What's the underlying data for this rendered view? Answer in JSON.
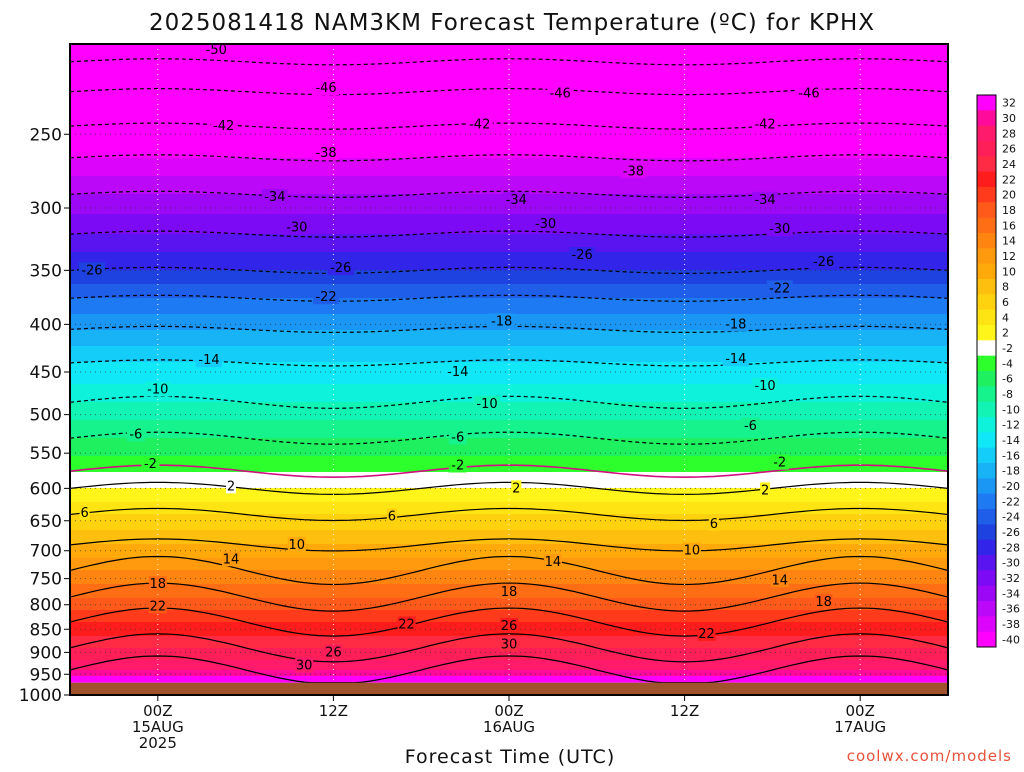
{
  "title": "2025081418 NAM3KM Forecast Temperature (ºC) for KPHX",
  "credit": "coolwx.com/models",
  "chart_data": {
    "type": "heatmap",
    "title": "2025081418 NAM3KM Forecast Temperature (ºC) for KPHX",
    "xlabel": "Forecast Time (UTC)",
    "ylabel": "",
    "y_axis_scale": "log-pressure (hPa), inverted",
    "ylim": [
      1000,
      200
    ],
    "x_hours_range": [
      0,
      60
    ],
    "x_ticks": [
      {
        "hour": 6,
        "lines": [
          "00Z",
          "15AUG",
          "2025"
        ]
      },
      {
        "hour": 18,
        "lines": [
          "12Z"
        ]
      },
      {
        "hour": 30,
        "lines": [
          "00Z",
          "16AUG"
        ]
      },
      {
        "hour": 42,
        "lines": [
          "12Z"
        ]
      },
      {
        "hour": 54,
        "lines": [
          "00Z",
          "17AUG"
        ]
      }
    ],
    "y_ticks": [
      250,
      300,
      350,
      400,
      450,
      500,
      550,
      600,
      650,
      700,
      750,
      800,
      850,
      900,
      950,
      1000
    ],
    "colorbar": {
      "levels": [
        32,
        30,
        28,
        26,
        24,
        22,
        20,
        18,
        16,
        14,
        12,
        10,
        8,
        6,
        4,
        2,
        -2,
        -4,
        -6,
        -8,
        -10,
        -12,
        -14,
        -16,
        -18,
        -20,
        -22,
        -24,
        -26,
        -28,
        -30,
        -32,
        -34,
        -36,
        -38,
        -40
      ],
      "colors": [
        "#ff00ff",
        "#ff0a9a",
        "#ff1a6c",
        "#ff1f58",
        "#ff2a44",
        "#ff1c1c",
        "#ff3b1c",
        "#ff5a1a",
        "#ff6e14",
        "#ff8510",
        "#ff9a0e",
        "#ffaa0a",
        "#ffbf0e",
        "#ffd210",
        "#ffe414",
        "#fff51a",
        "#ffffff",
        "#2cff2c",
        "#1ef060",
        "#16f28c",
        "#12f4b4",
        "#0ef2dc",
        "#10e8f8",
        "#14cdf8",
        "#18b2f6",
        "#1a96f4",
        "#1e7af2",
        "#1e5ee8",
        "#1e42e0",
        "#3224e8",
        "#5a14f0",
        "#7c0af4",
        "#9c08f6",
        "#bc08f8",
        "#dc04fa",
        "#ff00ff"
      ]
    },
    "contours": {
      "temperature_levels_c": [
        30,
        26,
        22,
        18,
        14,
        10,
        6,
        2,
        -2,
        -6,
        -10,
        -14,
        -18,
        -22,
        -26,
        -30,
        -34,
        -38,
        -42,
        -46,
        -50
      ],
      "positive_style": "solid",
      "negative_style": "dashed",
      "freezing_line_color": "#d01080"
    },
    "level_temperatures": [
      {
        "pressure": 200,
        "temp": -53
      },
      {
        "pressure": 215,
        "temp": -48
      },
      {
        "pressure": 235,
        "temp": -44
      },
      {
        "pressure": 265,
        "temp": -38
      },
      {
        "pressure": 290,
        "temp": -34
      },
      {
        "pressure": 320,
        "temp": -30
      },
      {
        "pressure": 350,
        "temp": -26
      },
      {
        "pressure": 375,
        "temp": -22
      },
      {
        "pressure": 405,
        "temp": -18
      },
      {
        "pressure": 440,
        "temp": -14
      },
      {
        "pressure": 485,
        "temp": -10
      },
      {
        "pressure": 530,
        "temp": -6
      },
      {
        "pressure": 575,
        "temp": -2
      },
      {
        "pressure": 600,
        "temp": 2
      },
      {
        "pressure": 640,
        "temp": 6
      },
      {
        "pressure": 690,
        "temp": 10
      },
      {
        "pressure": 735,
        "temp": 14
      },
      {
        "pressure": 785,
        "temp": 18
      },
      {
        "pressure": 835,
        "temp": 22
      },
      {
        "pressure": 890,
        "temp": 26
      },
      {
        "pressure": 940,
        "temp": 30
      },
      {
        "pressure": 970,
        "temp": 34
      }
    ],
    "surface_pressure": 970,
    "ground_color": "#a0522d",
    "contour_labels": [
      {
        "text": "-50",
        "hour": 10,
        "pressure": 203
      },
      {
        "text": "-46",
        "hour": 17.5,
        "pressure": 223
      },
      {
        "text": "-46",
        "hour": 33.5,
        "pressure": 226
      },
      {
        "text": "-46",
        "hour": 50.5,
        "pressure": 226
      },
      {
        "text": "-42",
        "hour": 10.5,
        "pressure": 245
      },
      {
        "text": "-42",
        "hour": 28,
        "pressure": 244
      },
      {
        "text": "-42",
        "hour": 47.5,
        "pressure": 244
      },
      {
        "text": "-38",
        "hour": 17.5,
        "pressure": 262
      },
      {
        "text": "-38",
        "hour": 38.5,
        "pressure": 274
      },
      {
        "text": "-34",
        "hour": 14,
        "pressure": 292
      },
      {
        "text": "-34",
        "hour": 30.5,
        "pressure": 294
      },
      {
        "text": "-34",
        "hour": 47.5,
        "pressure": 294
      },
      {
        "text": "-30",
        "hour": 15.5,
        "pressure": 315
      },
      {
        "text": "-30",
        "hour": 32.5,
        "pressure": 312
      },
      {
        "text": "-30",
        "hour": 48.5,
        "pressure": 316
      },
      {
        "text": "-26",
        "hour": 1.5,
        "pressure": 350
      },
      {
        "text": "-26",
        "hour": 18.5,
        "pressure": 348
      },
      {
        "text": "-26",
        "hour": 35,
        "pressure": 337
      },
      {
        "text": "-26",
        "hour": 51.5,
        "pressure": 343
      },
      {
        "text": "-22",
        "hour": 17.5,
        "pressure": 374
      },
      {
        "text": "-22",
        "hour": 48.5,
        "pressure": 366
      },
      {
        "text": "-18",
        "hour": 29.5,
        "pressure": 397
      },
      {
        "text": "-18",
        "hour": 45.5,
        "pressure": 400
      },
      {
        "text": "-14",
        "hour": 9.5,
        "pressure": 437
      },
      {
        "text": "-14",
        "hour": 26.5,
        "pressure": 450
      },
      {
        "text": "-14",
        "hour": 45.5,
        "pressure": 436
      },
      {
        "text": "-10",
        "hour": 6,
        "pressure": 470
      },
      {
        "text": "-10",
        "hour": 28.5,
        "pressure": 487
      },
      {
        "text": "-10",
        "hour": 47.5,
        "pressure": 466
      },
      {
        "text": "-6",
        "hour": 4.5,
        "pressure": 525
      },
      {
        "text": "-6",
        "hour": 26.5,
        "pressure": 529
      },
      {
        "text": "-6",
        "hour": 46.5,
        "pressure": 514
      },
      {
        "text": "-2",
        "hour": 5.5,
        "pressure": 565
      },
      {
        "text": "-2",
        "hour": 26.5,
        "pressure": 567
      },
      {
        "text": "-2",
        "hour": 48.5,
        "pressure": 563
      },
      {
        "text": "2",
        "hour": 11,
        "pressure": 597
      },
      {
        "text": "2",
        "hour": 30.5,
        "pressure": 600
      },
      {
        "text": "2",
        "hour": 47.5,
        "pressure": 603
      },
      {
        "text": "6",
        "hour": 1,
        "pressure": 638
      },
      {
        "text": "6",
        "hour": 22,
        "pressure": 643
      },
      {
        "text": "6",
        "hour": 44,
        "pressure": 655
      },
      {
        "text": "10",
        "hour": 15.5,
        "pressure": 690
      },
      {
        "text": "10",
        "hour": 42.5,
        "pressure": 700
      },
      {
        "text": "14",
        "hour": 11,
        "pressure": 715
      },
      {
        "text": "14",
        "hour": 33,
        "pressure": 720
      },
      {
        "text": "14",
        "hour": 48.5,
        "pressure": 753
      },
      {
        "text": "18",
        "hour": 6,
        "pressure": 760
      },
      {
        "text": "18",
        "hour": 30,
        "pressure": 775
      },
      {
        "text": "18",
        "hour": 51.5,
        "pressure": 795
      },
      {
        "text": "22",
        "hour": 6,
        "pressure": 803
      },
      {
        "text": "22",
        "hour": 23,
        "pressure": 840
      },
      {
        "text": "22",
        "hour": 43.5,
        "pressure": 860
      },
      {
        "text": "26",
        "hour": 30,
        "pressure": 843
      },
      {
        "text": "26",
        "hour": 18,
        "pressure": 900
      },
      {
        "text": "30",
        "hour": 30,
        "pressure": 883
      },
      {
        "text": "30",
        "hour": 16,
        "pressure": 930
      }
    ]
  }
}
